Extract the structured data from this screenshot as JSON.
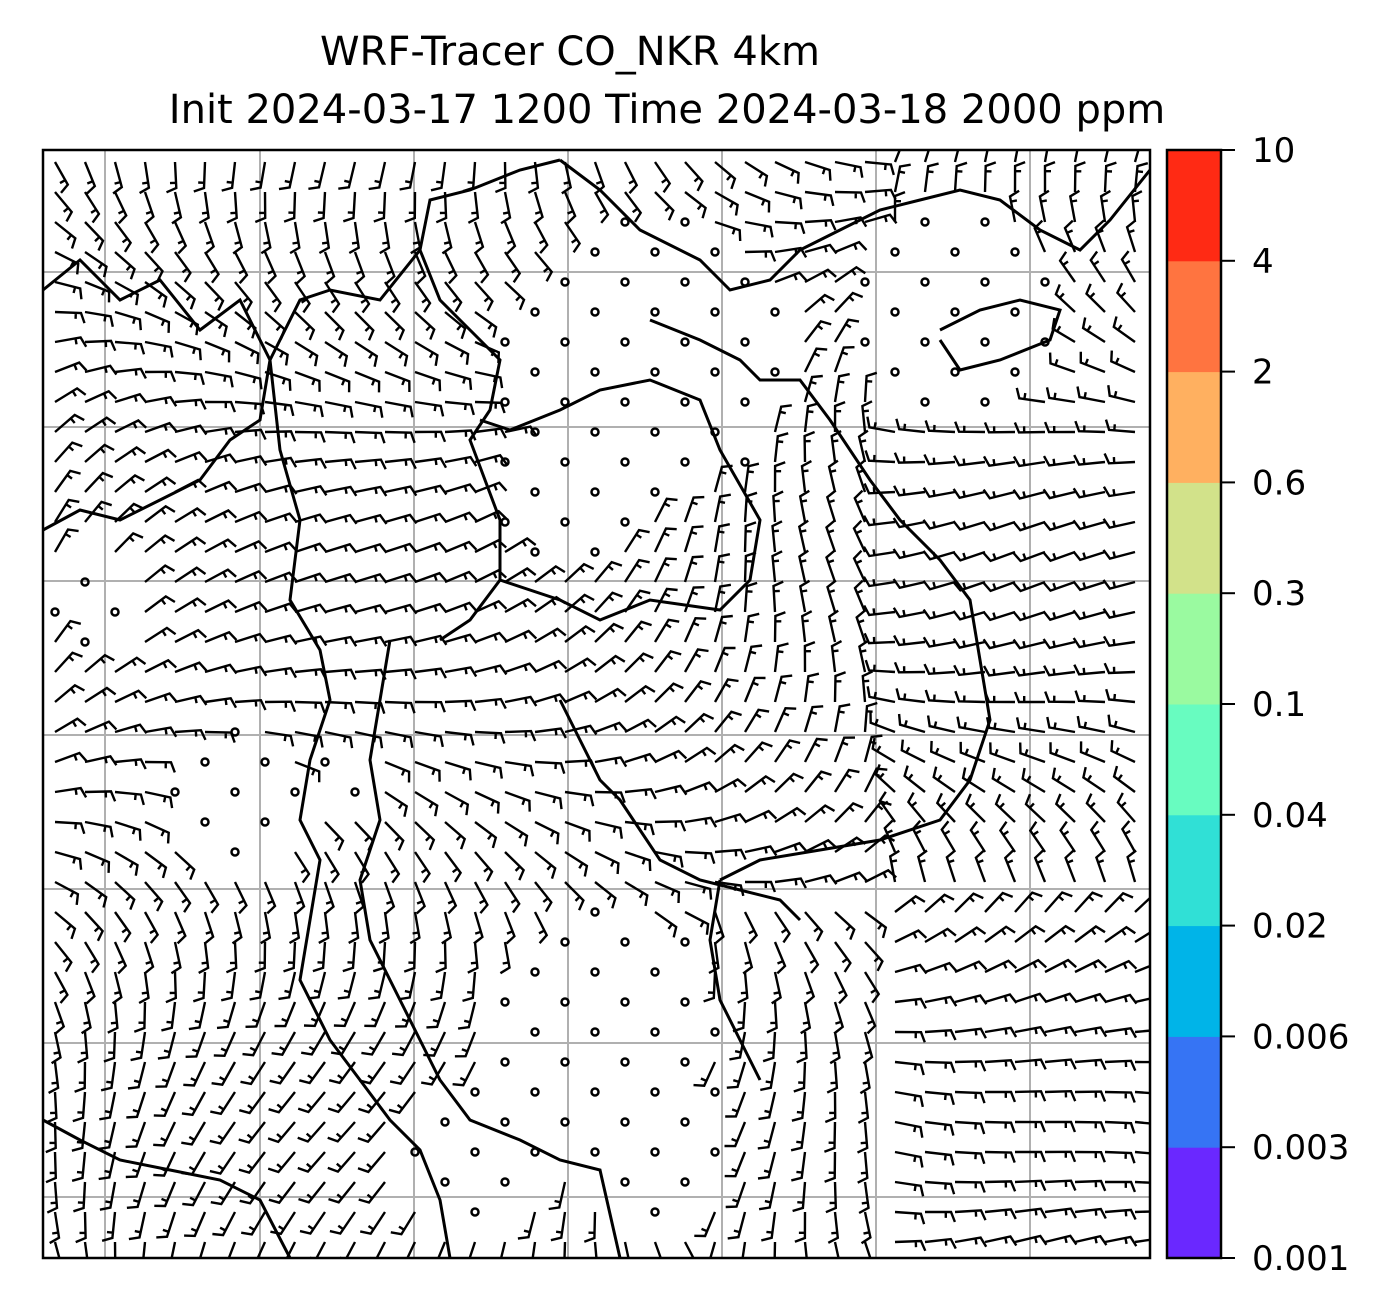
{
  "chart_data": {
    "type": "map",
    "title": "WRF-Tracer CO_NKR 4km",
    "subtitle": "Init 2024-03-17 1200 Time 2024-03-18 2000 ppm",
    "overlay": "wind barbs with calm circles, coastlines and country borders, lat/lon gridlines",
    "grid": true,
    "colorbar": {
      "position": "right",
      "levels": [
        "0.001",
        "0.003",
        "0.006",
        "0.02",
        "0.04",
        "0.1",
        "0.3",
        "0.6",
        "2",
        "4",
        "10"
      ],
      "colors": [
        "#6a28ff",
        "#3674f4",
        "#00b4e8",
        "#30e0d6",
        "#68fcc0",
        "#9afaa0",
        "#d2e28a",
        "#ffb060",
        "#ff7440",
        "#ff2a14"
      ]
    }
  }
}
